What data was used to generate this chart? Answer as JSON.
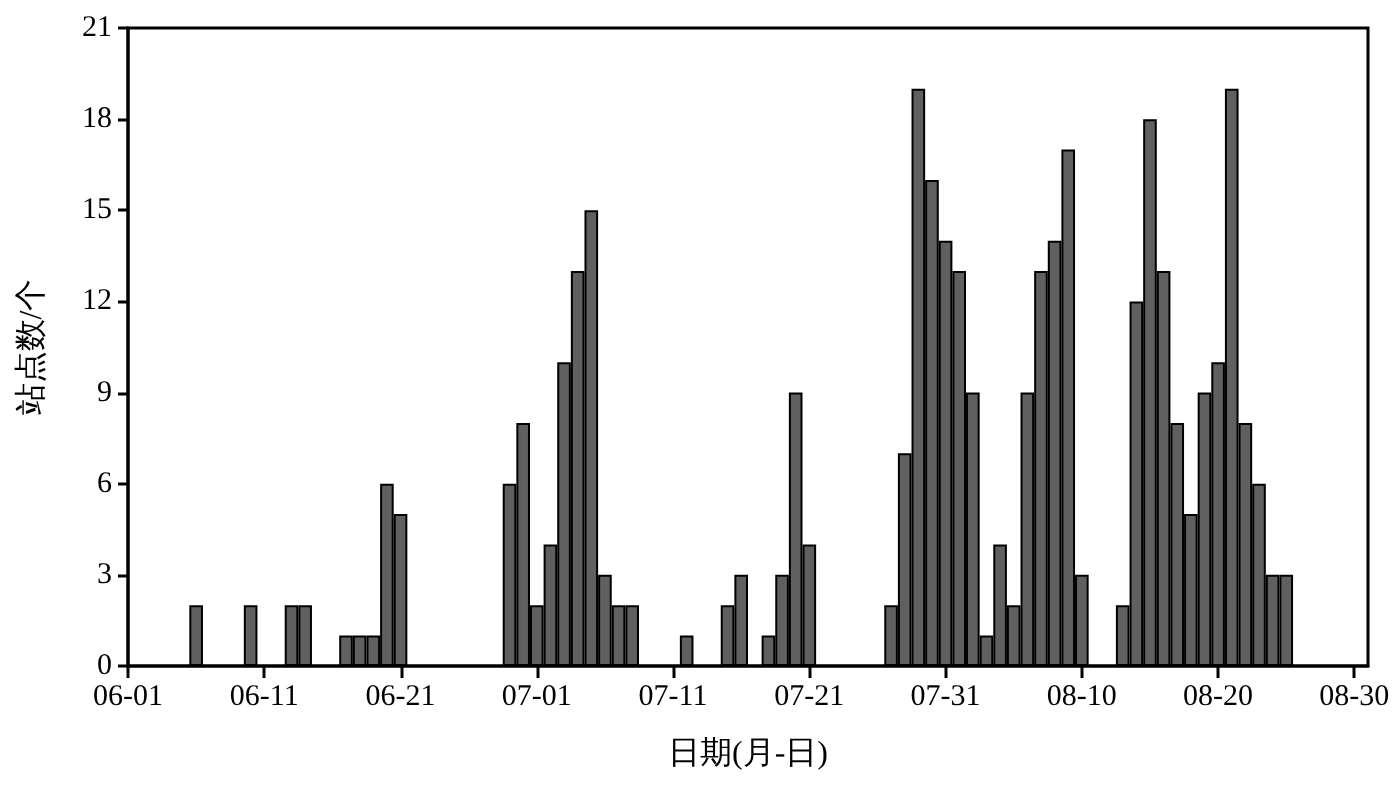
{
  "chart_data": {
    "type": "bar",
    "xlabel": "日期(月-日)",
    "ylabel": "站点数/个",
    "categories": [
      "06-01",
      null,
      null,
      null,
      null,
      null,
      null,
      null,
      null,
      null,
      "06-11",
      null,
      null,
      null,
      null,
      null,
      null,
      null,
      null,
      null,
      "06-21",
      null,
      null,
      null,
      null,
      null,
      null,
      null,
      null,
      null,
      "07-01",
      null,
      null,
      null,
      null,
      null,
      null,
      null,
      null,
      null,
      "07-11",
      null,
      null,
      null,
      null,
      null,
      null,
      null,
      null,
      null,
      "07-21",
      null,
      null,
      null,
      null,
      null,
      null,
      null,
      null,
      null,
      "07-31",
      null,
      null,
      null,
      null,
      null,
      null,
      null,
      null,
      null,
      "08-10",
      null,
      null,
      null,
      null,
      null,
      null,
      null,
      null,
      null,
      "08-20",
      null,
      null,
      null,
      null,
      null,
      null,
      null,
      null,
      null,
      "08-30",
      null
    ],
    "values": [
      0,
      0,
      0,
      0,
      0,
      2,
      0,
      0,
      0,
      2,
      0,
      0,
      2,
      2,
      0,
      0,
      1,
      1,
      1,
      6,
      5,
      0,
      0,
      0,
      0,
      0,
      0,
      0,
      6,
      8,
      2,
      4,
      10,
      13,
      15,
      3,
      2,
      2,
      0,
      0,
      0,
      1,
      0,
      0,
      2,
      3,
      0,
      1,
      3,
      9,
      4,
      0,
      0,
      0,
      0,
      0,
      2,
      7,
      19,
      16,
      14,
      13,
      9,
      1,
      4,
      2,
      9,
      13,
      14,
      17,
      3,
      0,
      0,
      2,
      12,
      18,
      13,
      8,
      5,
      9,
      10,
      19,
      8,
      6,
      3,
      3,
      0,
      0,
      0,
      0,
      0,
      0
    ],
    "color": "#606060",
    "ylim": [
      0,
      21
    ],
    "yticks": [
      0,
      3,
      6,
      9,
      12,
      15,
      18,
      21
    ],
    "grid": false
  }
}
